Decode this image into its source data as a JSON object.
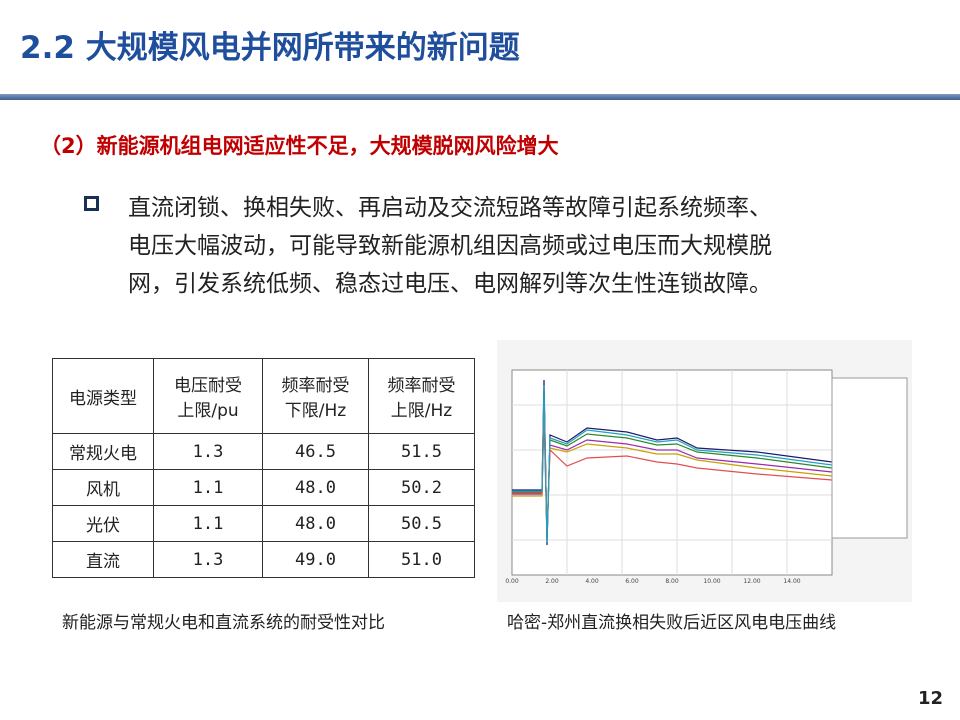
{
  "header": {
    "title": "2.2 大规模风电并网所带来的新问题"
  },
  "subtitle": "（2）新能源机组电网适应性不足，大规模脱网风险增大",
  "bullet": [
    "直流闭锁、换相失败、再启动及交流短路等故障引起系统频率、",
    "电压大幅波动，可能导致新能源机组因高频或过电压而大规模脱",
    "网，引发系统低频、稳态过电压、电网解列等次生性连锁故障。"
  ],
  "table": {
    "header": [
      [
        "电源类型"
      ],
      [
        "电压耐受",
        "上限/pu"
      ],
      [
        "频率耐受",
        "下限/Hz"
      ],
      [
        "频率耐受",
        "上限/Hz"
      ]
    ],
    "rows": [
      [
        "常规火电",
        "1.3",
        "46.5",
        "51.5"
      ],
      [
        "风机",
        "1.1",
        "48.0",
        "50.2"
      ],
      [
        "光伏",
        "1.1",
        "48.0",
        "50.5"
      ],
      [
        "直流",
        "1.3",
        "49.0",
        "51.0"
      ]
    ]
  },
  "table_caption": "新能源与常规火电和直流系统的耐受性对比",
  "figure": {
    "x_ticks": [
      "0.00",
      "2.00",
      "4.00",
      "6.00",
      "8.00",
      "10.00",
      "12.00",
      "14.00"
    ]
  },
  "figure_caption": "哈密-郑州直流换相失败后近区风电电压曲线",
  "page_number": "12"
}
